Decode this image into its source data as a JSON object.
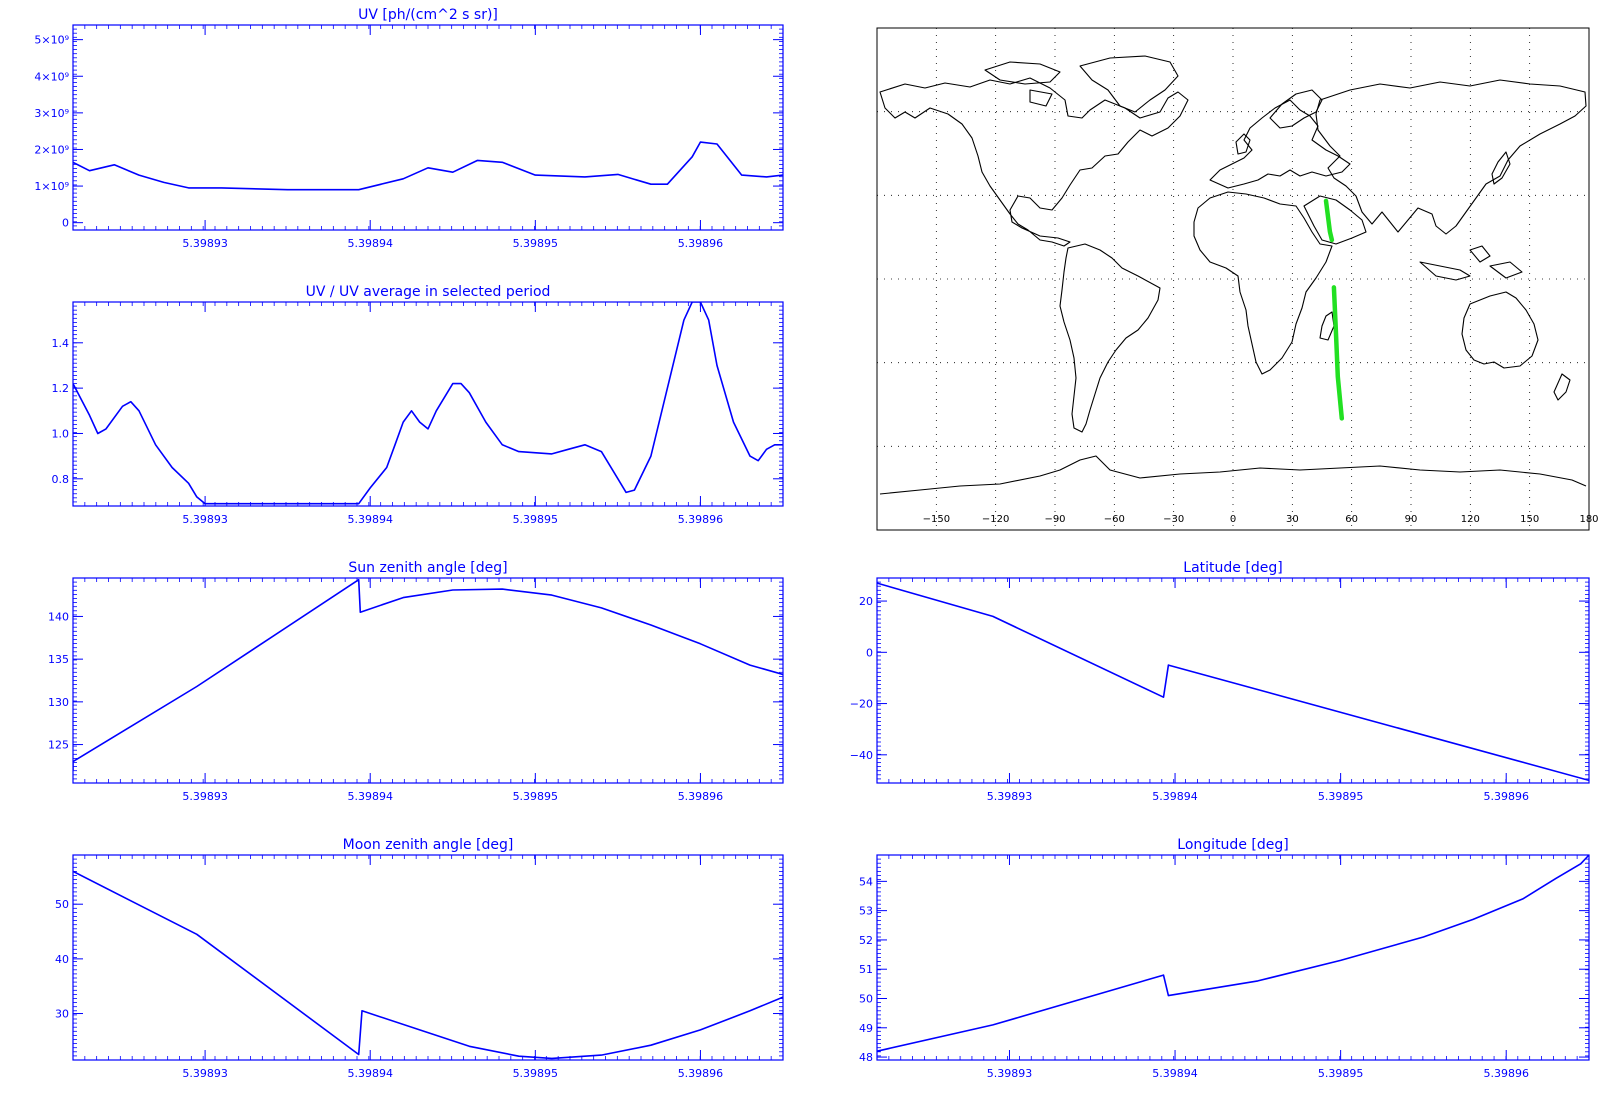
{
  "panels": [
    {
      "id": "uv",
      "title": "UV [ph/(cm^2 s sr)]",
      "xlim": [
        5.398922,
        5.398965
      ],
      "ylim": [
        -200000000,
        5400000000
      ],
      "xticks": [
        5.39893,
        5.39894,
        5.39895,
        5.39896
      ],
      "xtick_labels": [
        "5.39893",
        "5.39894",
        "5.39895",
        "5.39896"
      ],
      "yticks": [
        0,
        1000000000,
        2000000000,
        3000000000,
        4000000000,
        5000000000
      ],
      "ytick_labels": [
        "0",
        "1×10⁹",
        "2×10⁹",
        "3×10⁹",
        "4×10⁹",
        "5×10⁹"
      ],
      "points": [
        [
          5.398922,
          1650000000
        ],
        [
          5.398923,
          1420000000
        ],
        [
          5.3989245,
          1580000000
        ],
        [
          5.398926,
          1300000000
        ],
        [
          5.3989275,
          1100000000
        ],
        [
          5.398929,
          950000000
        ],
        [
          5.398931,
          950000000
        ],
        [
          5.398935,
          900000000
        ],
        [
          5.3989393,
          900000000
        ],
        [
          5.398942,
          1200000000
        ],
        [
          5.3989435,
          1500000000
        ],
        [
          5.398945,
          1380000000
        ],
        [
          5.3989465,
          1700000000
        ],
        [
          5.398948,
          1650000000
        ],
        [
          5.39895,
          1300000000
        ],
        [
          5.398953,
          1250000000
        ],
        [
          5.398955,
          1320000000
        ],
        [
          5.398957,
          1050000000
        ],
        [
          5.398958,
          1050000000
        ],
        [
          5.3989595,
          1800000000
        ],
        [
          5.39896,
          2200000000
        ],
        [
          5.398961,
          2150000000
        ],
        [
          5.3989625,
          1300000000
        ],
        [
          5.398964,
          1250000000
        ],
        [
          5.398965,
          1300000000
        ]
      ]
    },
    {
      "id": "uv_ratio",
      "title": "UV / UV average in selected period",
      "xlim": [
        5.398922,
        5.398965
      ],
      "ylim": [
        0.68,
        1.58
      ],
      "xticks": [
        5.39893,
        5.39894,
        5.39895,
        5.39896
      ],
      "xtick_labels": [
        "5.39893",
        "5.39894",
        "5.39895",
        "5.39896"
      ],
      "yticks": [
        0.8,
        1.0,
        1.2,
        1.4
      ],
      "ytick_labels": [
        "0.8",
        "1.0",
        "1.2",
        "1.4"
      ],
      "points": [
        [
          5.398922,
          1.22
        ],
        [
          5.398923,
          1.08
        ],
        [
          5.3989235,
          1.0
        ],
        [
          5.398924,
          1.02
        ],
        [
          5.398925,
          1.12
        ],
        [
          5.3989255,
          1.14
        ],
        [
          5.398926,
          1.1
        ],
        [
          5.398927,
          0.95
        ],
        [
          5.398928,
          0.85
        ],
        [
          5.398929,
          0.78
        ],
        [
          5.3989295,
          0.72
        ],
        [
          5.39893,
          0.69
        ],
        [
          5.3989393,
          0.69
        ],
        [
          5.39894,
          0.76
        ],
        [
          5.398941,
          0.85
        ],
        [
          5.3989415,
          0.95
        ],
        [
          5.398942,
          1.05
        ],
        [
          5.3989425,
          1.1
        ],
        [
          5.398943,
          1.05
        ],
        [
          5.3989435,
          1.02
        ],
        [
          5.398944,
          1.1
        ],
        [
          5.398945,
          1.22
        ],
        [
          5.3989455,
          1.22
        ],
        [
          5.398946,
          1.18
        ],
        [
          5.398947,
          1.05
        ],
        [
          5.398948,
          0.95
        ],
        [
          5.398949,
          0.92
        ],
        [
          5.398951,
          0.91
        ],
        [
          5.398952,
          0.93
        ],
        [
          5.398953,
          0.95
        ],
        [
          5.398954,
          0.92
        ],
        [
          5.398955,
          0.8
        ],
        [
          5.3989555,
          0.74
        ],
        [
          5.398956,
          0.75
        ],
        [
          5.398957,
          0.9
        ],
        [
          5.398958,
          1.2
        ],
        [
          5.398959,
          1.5
        ],
        [
          5.3989595,
          1.58
        ],
        [
          5.39896,
          1.58
        ],
        [
          5.3989605,
          1.5
        ],
        [
          5.398961,
          1.3
        ],
        [
          5.398962,
          1.05
        ],
        [
          5.398963,
          0.9
        ],
        [
          5.3989635,
          0.88
        ],
        [
          5.398964,
          0.93
        ],
        [
          5.3989645,
          0.95
        ],
        [
          5.398965,
          0.95
        ]
      ]
    },
    {
      "id": "sun",
      "title": "Sun zenith angle [deg]",
      "xlim": [
        5.398922,
        5.398965
      ],
      "ylim": [
        120.5,
        144.5
      ],
      "xticks": [
        5.39893,
        5.39894,
        5.39895,
        5.39896
      ],
      "xtick_labels": [
        "5.39893",
        "5.39894",
        "5.39895",
        "5.39896"
      ],
      "yticks": [
        125,
        130,
        135,
        140
      ],
      "ytick_labels": [
        "125",
        "130",
        "135",
        "140"
      ],
      "points": [
        [
          5.398922,
          122
        ],
        [
          5.398922,
          123
        ],
        [
          5.3989295,
          131.8
        ],
        [
          5.3989393,
          144.3
        ],
        [
          5.3989394,
          140.5
        ],
        [
          5.398942,
          142.2
        ],
        [
          5.398945,
          143.1
        ],
        [
          5.398948,
          143.2
        ],
        [
          5.398951,
          142.5
        ],
        [
          5.398954,
          141
        ],
        [
          5.398957,
          139
        ],
        [
          5.39896,
          136.8
        ],
        [
          5.398963,
          134.3
        ],
        [
          5.398965,
          133.2
        ]
      ]
    },
    {
      "id": "lat",
      "title": "Latitude [deg]",
      "xlim": [
        5.398922,
        5.398965
      ],
      "ylim": [
        -51,
        29
      ],
      "xticks": [
        5.39893,
        5.39894,
        5.39895,
        5.39896
      ],
      "xtick_labels": [
        "5.39893",
        "5.39894",
        "5.39895",
        "5.39896"
      ],
      "yticks": [
        -40,
        -20,
        0,
        20
      ],
      "ytick_labels": [
        "−40",
        "−20",
        "0",
        "20"
      ],
      "points": [
        [
          5.398922,
          27
        ],
        [
          5.398929,
          14
        ],
        [
          5.3989393,
          -17.5
        ],
        [
          5.3989396,
          -5
        ],
        [
          5.398965,
          -50
        ]
      ]
    },
    {
      "id": "moon",
      "title": "Moon zenith angle [deg]",
      "xlim": [
        5.398922,
        5.398965
      ],
      "ylim": [
        21.5,
        59
      ],
      "xticks": [
        5.39893,
        5.39894,
        5.39895,
        5.39896
      ],
      "xtick_labels": [
        "5.39893",
        "5.39894",
        "5.39895",
        "5.39896"
      ],
      "yticks": [
        30,
        40,
        50
      ],
      "ytick_labels": [
        "30",
        "40",
        "50"
      ],
      "points": [
        [
          5.398922,
          56
        ],
        [
          5.3989295,
          44.5
        ],
        [
          5.3989393,
          22.5
        ],
        [
          5.3989395,
          30.5
        ],
        [
          5.398943,
          27
        ],
        [
          5.398946,
          24
        ],
        [
          5.398949,
          22.2
        ],
        [
          5.398951,
          21.8
        ],
        [
          5.398954,
          22.4
        ],
        [
          5.398957,
          24.2
        ],
        [
          5.39896,
          27
        ],
        [
          5.398963,
          30.5
        ],
        [
          5.398965,
          33
        ]
      ]
    },
    {
      "id": "lon",
      "title": "Longitude [deg]",
      "xlim": [
        5.398922,
        5.398965
      ],
      "ylim": [
        47.9,
        54.9
      ],
      "xticks": [
        5.39893,
        5.39894,
        5.39895,
        5.39896
      ],
      "xtick_labels": [
        "5.39893",
        "5.39894",
        "5.39895",
        "5.39896"
      ],
      "yticks": [
        48,
        49,
        50,
        51,
        52,
        53,
        54
      ],
      "ytick_labels": [
        "48",
        "49",
        "50",
        "51",
        "52",
        "53",
        "54"
      ],
      "points": [
        [
          5.398922,
          48.2
        ],
        [
          5.398929,
          49.1
        ],
        [
          5.3989393,
          50.8
        ],
        [
          5.3989396,
          50.1
        ],
        [
          5.398945,
          50.6
        ],
        [
          5.39895,
          51.3
        ],
        [
          5.398955,
          52.1
        ],
        [
          5.398958,
          52.7
        ],
        [
          5.398961,
          53.4
        ],
        [
          5.398963,
          54.1
        ],
        [
          5.3989645,
          54.6
        ],
        [
          5.398965,
          54.9
        ]
      ]
    }
  ],
  "map": {
    "xlim": [
      -180,
      180
    ],
    "ylim": [
      -90,
      90
    ],
    "xticks": [
      -150,
      -120,
      -90,
      -60,
      -30,
      0,
      30,
      60,
      90,
      120,
      150,
      180
    ],
    "xtick_labels": [
      "−150",
      "−120",
      "−90",
      "−60",
      "−30",
      "0",
      "30",
      "60",
      "90",
      "120",
      "150",
      "180"
    ],
    "track_color": "#22e022",
    "track_segments": [
      [
        [
          47,
          28
        ],
        [
          49,
          17
        ],
        [
          50,
          14
        ]
      ],
      [
        [
          51,
          -3
        ],
        [
          52,
          -18
        ],
        [
          53,
          -35
        ],
        [
          55,
          -50
        ]
      ]
    ]
  },
  "colors": {
    "plot": "#0000ff",
    "map": "#000000",
    "track": "#22e022"
  },
  "chart_data": [
    {
      "type": "line",
      "title": "UV [ph/(cm^2 s sr)]",
      "x": [
        5.398922,
        5.39893,
        5.39894,
        5.39895,
        5.39896,
        5.398965
      ],
      "y": [
        1650000000,
        950000000,
        900000000,
        1300000000,
        2200000000,
        1300000000
      ]
    },
    {
      "type": "line",
      "title": "UV / UV average in selected period",
      "x": [
        5.398922,
        5.39893,
        5.39894,
        5.39895,
        5.39896,
        5.398965
      ],
      "y": [
        1.22,
        0.69,
        0.76,
        0.92,
        1.58,
        0.95
      ]
    },
    {
      "type": "line",
      "title": "Sun zenith angle [deg]",
      "x": [
        5.398922,
        5.39893,
        5.39894,
        5.39895,
        5.39896,
        5.398965
      ],
      "y": [
        123,
        132,
        140.5,
        143,
        136.8,
        133.2
      ]
    },
    {
      "type": "line",
      "title": "Latitude [deg]",
      "x": [
        5.398922,
        5.39893,
        5.39894,
        5.39895,
        5.39896,
        5.398965
      ],
      "y": [
        27,
        12,
        -5,
        -23,
        -41,
        -50
      ]
    },
    {
      "type": "line",
      "title": "Moon zenith angle [deg]",
      "x": [
        5.398922,
        5.39893,
        5.39894,
        5.39895,
        5.39896,
        5.398965
      ],
      "y": [
        56,
        44,
        30,
        22,
        27,
        33
      ]
    },
    {
      "type": "line",
      "title": "Longitude [deg]",
      "x": [
        5.398922,
        5.39893,
        5.39894,
        5.39895,
        5.39896,
        5.398965
      ],
      "y": [
        48.2,
        49.2,
        50.1,
        51.2,
        53.0,
        54.9
      ]
    }
  ]
}
